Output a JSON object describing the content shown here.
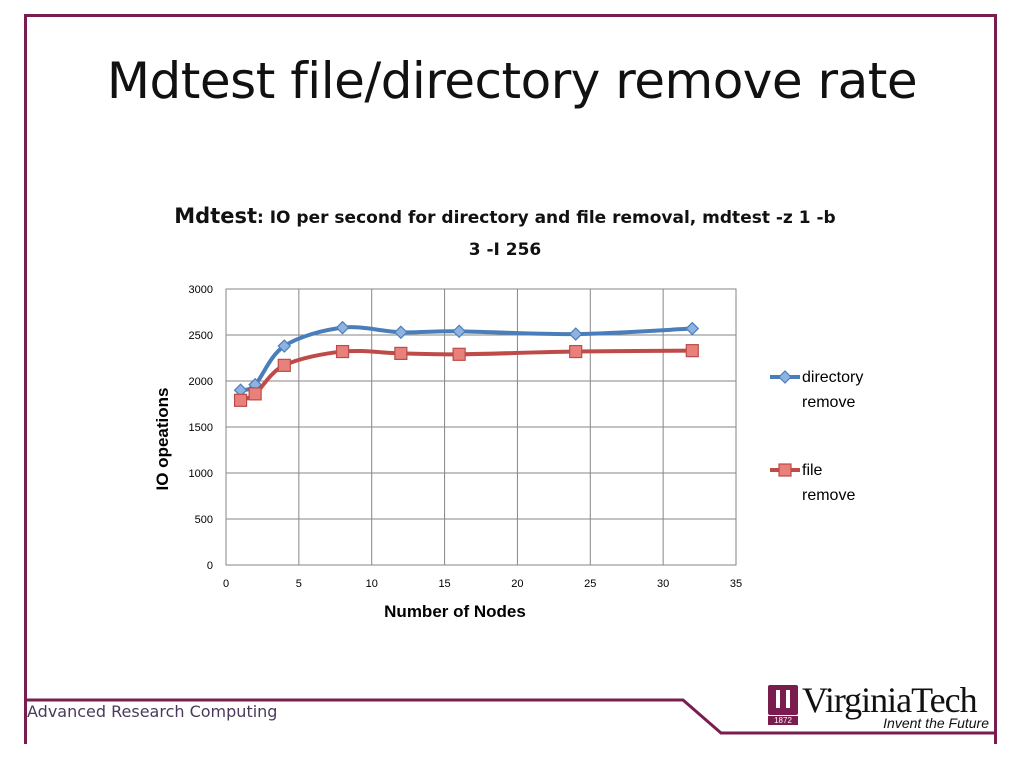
{
  "slide": {
    "title": "Mdtest file/directory remove rate",
    "footer": "Advanced Research Computing"
  },
  "logo": {
    "name": "VirginiaTech",
    "tagline": "Invent the Future",
    "year": "1872"
  },
  "colors": {
    "frame": "#7b1c4e",
    "series_directory": "#4a7ebb",
    "series_file": "#be4b48",
    "gridline": "#868686"
  },
  "chart_data": {
    "type": "line",
    "title_lead": "Mdtest",
    "title_rest": ": IO per second for directory and file removal, mdtest -z 1 -b 3 -I 256",
    "xlabel": "Number of Nodes",
    "ylabel": "IO opeations",
    "xlim": [
      0,
      35
    ],
    "ylim": [
      0,
      3000
    ],
    "xticks": [
      0,
      5,
      10,
      15,
      20,
      25,
      30,
      35
    ],
    "yticks": [
      0,
      500,
      1000,
      1500,
      2000,
      2500,
      3000
    ],
    "grid": true,
    "legend_position": "right",
    "series": [
      {
        "name": "directory remove",
        "marker": "diamond",
        "color": "#4a7ebb",
        "x": [
          1,
          2,
          4,
          8,
          12,
          16,
          24,
          32
        ],
        "y": [
          1900,
          1960,
          2380,
          2580,
          2530,
          2540,
          2510,
          2570
        ]
      },
      {
        "name": "file remove",
        "marker": "square",
        "color": "#be4b48",
        "x": [
          1,
          2,
          4,
          8,
          12,
          16,
          24,
          32
        ],
        "y": [
          1790,
          1860,
          2170,
          2320,
          2300,
          2290,
          2320,
          2330
        ]
      }
    ]
  }
}
